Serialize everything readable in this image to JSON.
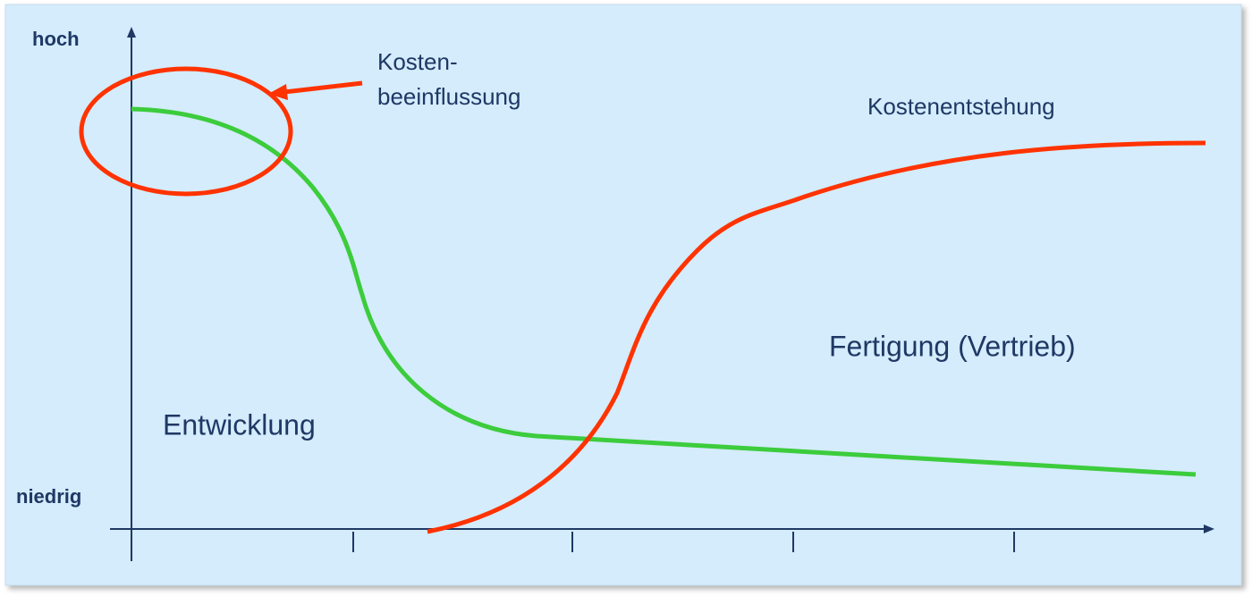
{
  "axis_labels": {
    "top": "hoch",
    "bottom": "niedrig"
  },
  "callout": {
    "line1": "Kosten-",
    "line2": "beeinflussung"
  },
  "curve_labels": {
    "cost_incurrence": "Kostenentstehung"
  },
  "phases": {
    "development": "Entwicklung",
    "production": "Fertigung (Vertrieb)"
  }
}
